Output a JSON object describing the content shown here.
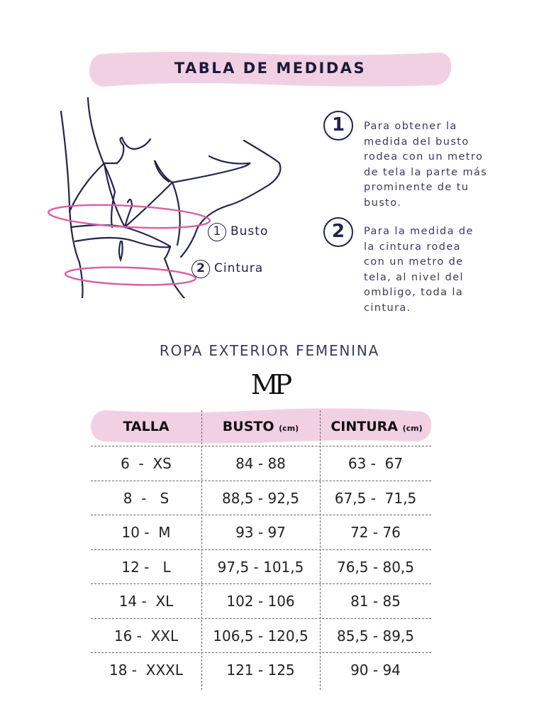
{
  "title": "TABLA DE MEDIDAS",
  "figure_labels": {
    "busto_num": "1",
    "busto": "Busto",
    "cintura_num": "2",
    "cintura": "Cintura"
  },
  "steps": [
    {
      "num": "1",
      "text": [
        "Para obtener la",
        "medida del busto",
        "rodea con un metro",
        "de tela la parte más",
        "prominente de tu",
        "busto."
      ]
    },
    {
      "num": "2",
      "text": [
        "Para la medida de",
        "la cintura rodea",
        "con un metro de",
        "tela, al nivel del",
        "ombligo, toda la",
        "cintura."
      ]
    }
  ],
  "section_title": "ROPA EXTERIOR FEMENINA",
  "logo": "MP",
  "colors": {
    "accent_pink": "#f2d0e3",
    "ring_pink": "#d660a2",
    "ink": "#23234d"
  },
  "table": {
    "headers": [
      {
        "label": "TALLA",
        "unit": ""
      },
      {
        "label": "BUSTO",
        "unit": "(cm)"
      },
      {
        "label": "CINTURA",
        "unit": "(cm)"
      }
    ],
    "rows": [
      [
        "6  -  XS",
        "84 - 88",
        "63 -  67"
      ],
      [
        "8  -   S",
        "88,5 - 92,5",
        "67,5 -  71,5"
      ],
      [
        "10 -  M",
        "93 - 97",
        "72 - 76"
      ],
      [
        "12 -   L",
        "97,5 - 101,5",
        "76,5 - 80,5"
      ],
      [
        "14 -  XL",
        "102 - 106",
        "81 - 85"
      ],
      [
        "16 -  XXL",
        "106,5 - 120,5",
        "85,5 - 89,5"
      ],
      [
        "18 -  XXXL",
        "121 - 125",
        "90 - 94"
      ]
    ]
  }
}
